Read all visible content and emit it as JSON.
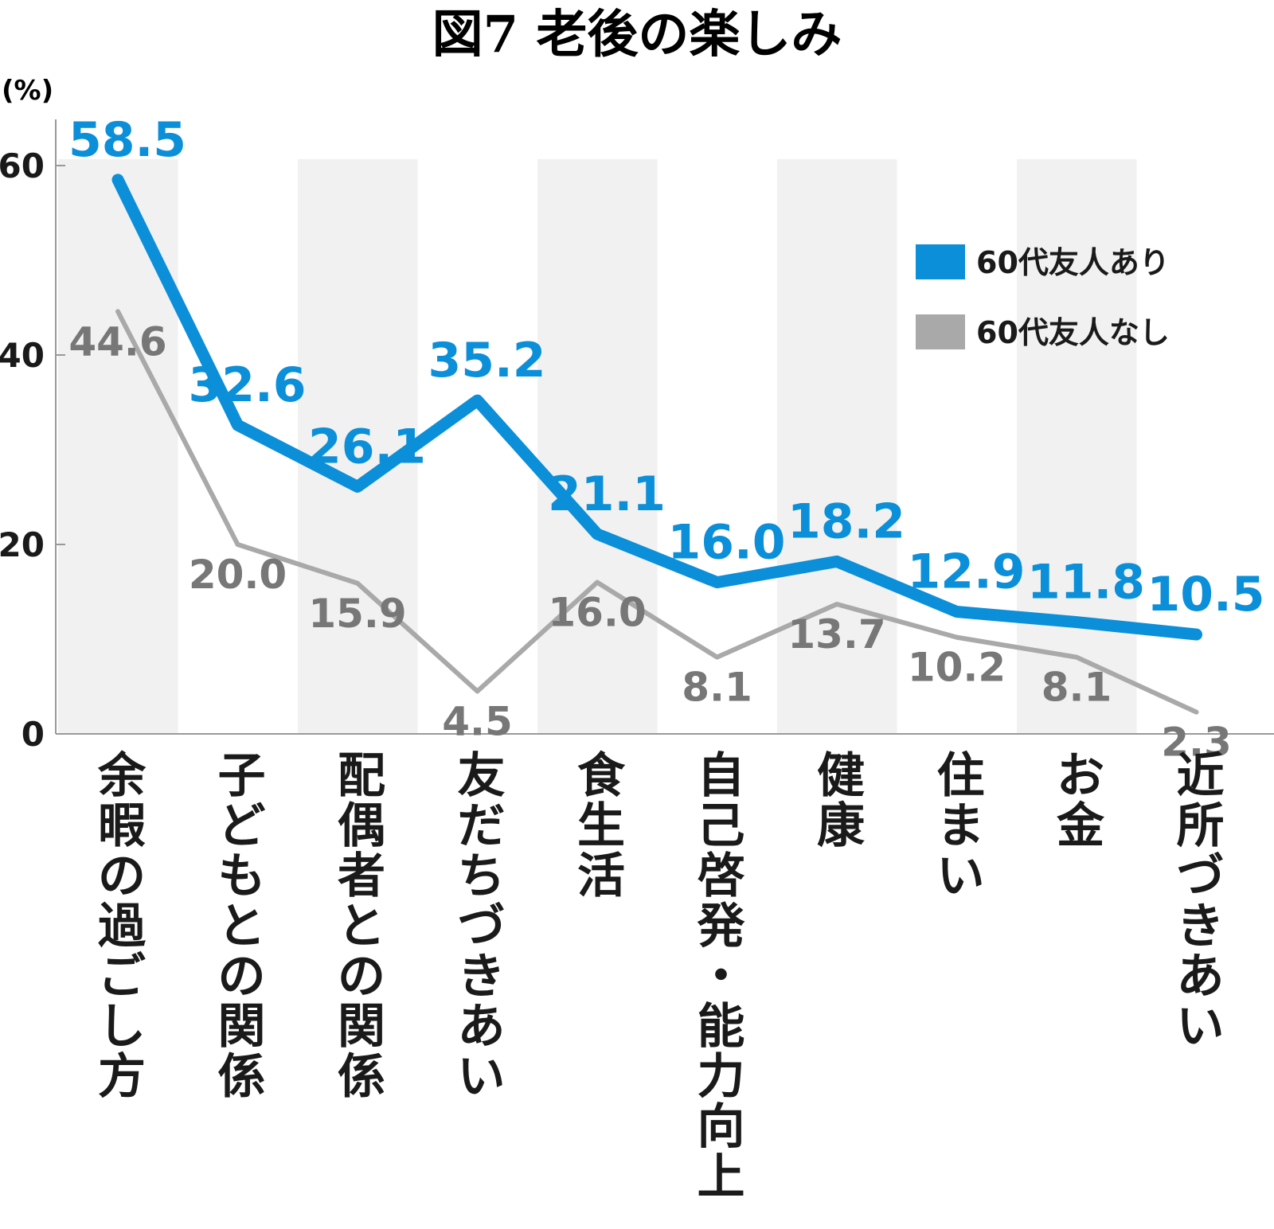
{
  "chart_data": {
    "type": "line",
    "title": "図7 老後の楽しみ",
    "unit_label": "(%)",
    "ylim": [
      0,
      65
    ],
    "yticks": [
      0,
      20,
      40,
      60
    ],
    "categories": [
      "余暇の過ごし方",
      "子どもとの関係",
      "配偶者との関係",
      "友だちづきあい",
      "食生活",
      "自己啓発・能力向上",
      "健康",
      "住まい",
      "お金",
      "近所づきあい"
    ],
    "series": [
      {
        "name": "60代友人あり",
        "color": "#0b8fd9",
        "values": [
          58.5,
          32.6,
          26.1,
          35.2,
          21.1,
          16.0,
          18.2,
          12.9,
          11.8,
          10.5
        ],
        "labels": [
          "58.5",
          "32.6",
          "26.1",
          "35.2",
          "21.1",
          "16.0",
          "18.2",
          "12.9",
          "11.8",
          "10.5"
        ]
      },
      {
        "name": "60代友人なし",
        "color": "#a9a9a9",
        "values": [
          44.6,
          20.0,
          15.9,
          4.5,
          16.0,
          8.1,
          13.7,
          10.2,
          8.1,
          2.3
        ],
        "labels": [
          "44.6",
          "20.0",
          "15.9",
          "4.5",
          "16.0",
          "8.1",
          "13.7",
          "10.2",
          "8.1",
          "2.3"
        ]
      }
    ],
    "legend_position": "top-right",
    "band_color": "#f1f1f1",
    "text_color_gray": "#777777"
  }
}
